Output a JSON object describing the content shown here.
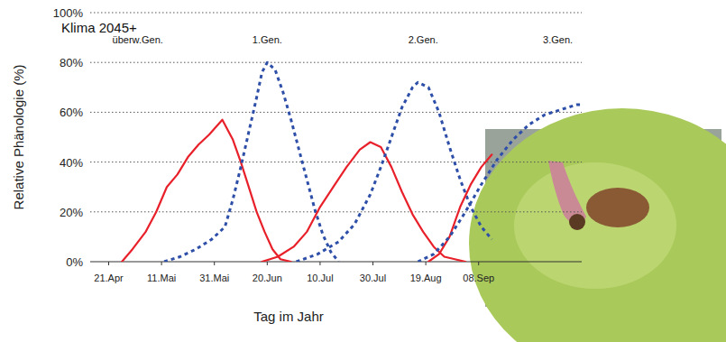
{
  "chart_data": {
    "type": "line",
    "title": "Klima 2045+",
    "x_label": "Tag im Jahr",
    "y_label": "Relative Phänologie (%)",
    "xlim": [
      104,
      290
    ],
    "ylim": [
      0,
      100
    ],
    "xticks": [
      {
        "value": 111,
        "label": "21.Apr"
      },
      {
        "value": 131,
        "label": "11.Mai"
      },
      {
        "value": 151,
        "label": "31.Mai"
      },
      {
        "value": 171,
        "label": "20.Jun"
      },
      {
        "value": 191,
        "label": "10.Jul"
      },
      {
        "value": 211,
        "label": "30.Jul"
      },
      {
        "value": 231,
        "label": "19.Aug"
      },
      {
        "value": 251,
        "label": "08.Sep"
      }
    ],
    "yticks": [
      {
        "value": 0,
        "label": "0%"
      },
      {
        "value": 20,
        "label": "20%"
      },
      {
        "value": 40,
        "label": "40%"
      },
      {
        "value": 60,
        "label": "60%"
      },
      {
        "value": 80,
        "label": "80%"
      },
      {
        "value": 100,
        "label": "100%"
      }
    ],
    "grid": true,
    "annotations": [
      {
        "text": "überw.Gen.",
        "x": 122,
        "y": 89
      },
      {
        "text": "1.Gen.",
        "x": 171,
        "y": 89
      },
      {
        "text": "2.Gen.",
        "x": 230,
        "y": 89
      },
      {
        "text": "3.Gen.",
        "x": 281,
        "y": 89
      }
    ],
    "series": [
      {
        "color": "#e8202a",
        "line_style": "solid",
        "x": [
          116,
          120,
          125,
          129,
          133,
          137,
          141,
          145,
          149,
          154,
          158,
          161,
          164,
          167,
          170,
          173,
          176,
          180
        ],
        "values": [
          0,
          5,
          12,
          20,
          30,
          35,
          42,
          47,
          51,
          57,
          49,
          40,
          30,
          20,
          12,
          5,
          1,
          0
        ]
      },
      {
        "color": "#2e4fa8",
        "line_style": "dashed",
        "x": [
          132,
          138,
          144,
          150,
          155,
          158,
          161,
          164,
          167,
          169,
          171,
          174,
          177,
          180,
          183,
          186,
          189,
          192,
          195,
          198
        ],
        "values": [
          0,
          2,
          5,
          9,
          14,
          25,
          38,
          52,
          66,
          76,
          80,
          77,
          68,
          57,
          45,
          33,
          21,
          11,
          4,
          0
        ]
      },
      {
        "color": "#e8202a",
        "line_style": "solid",
        "x": [
          169,
          175,
          181,
          186,
          191,
          196,
          201,
          206,
          210,
          214,
          218,
          222,
          226,
          230,
          234,
          238,
          242,
          246
        ],
        "values": [
          0,
          2,
          6,
          12,
          22,
          30,
          38,
          45,
          48,
          46,
          38,
          28,
          19,
          12,
          6,
          2,
          1,
          0
        ]
      },
      {
        "color": "#2e4fa8",
        "line_style": "dashed",
        "x": [
          182,
          190,
          198,
          204,
          210,
          214,
          218,
          222,
          226,
          228,
          232,
          236,
          240,
          244,
          248,
          252,
          256
        ],
        "values": [
          0,
          3,
          8,
          15,
          27,
          38,
          50,
          62,
          70,
          72,
          70,
          60,
          46,
          33,
          22,
          14,
          9
        ]
      },
      {
        "color": "#e8202a",
        "line_style": "solid",
        "x": [
          232,
          236,
          240,
          244,
          248,
          252,
          256
        ],
        "values": [
          0,
          3,
          10,
          22,
          31,
          38,
          43
        ]
      },
      {
        "color": "#2e4fa8",
        "line_style": "dashed",
        "x": [
          228,
          234,
          240,
          246,
          252,
          258,
          264,
          270,
          276,
          282,
          288,
          290
        ],
        "values": [
          0,
          3,
          10,
          20,
          31,
          41,
          49,
          55,
          59,
          61,
          63,
          63
        ]
      }
    ]
  }
}
